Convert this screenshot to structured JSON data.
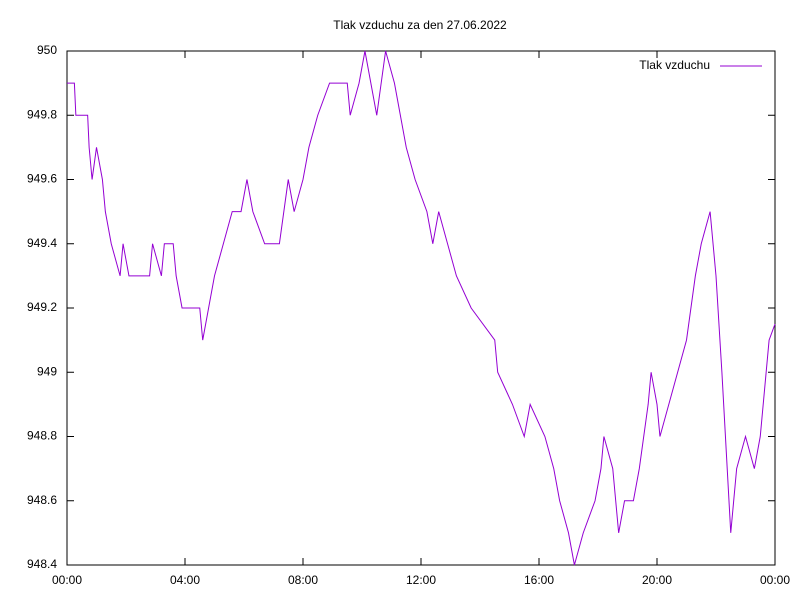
{
  "chart_data": {
    "type": "line",
    "title": "Tlak vzduchu za den 27.06.2022",
    "x": [
      0,
      0.25,
      0.3,
      0.7,
      0.75,
      0.85,
      1.0,
      1.2,
      1.3,
      1.5,
      1.8,
      1.9,
      2.1,
      2.3,
      2.8,
      2.9,
      3.2,
      3.3,
      3.6,
      3.7,
      3.9,
      4.5,
      4.6,
      4.8,
      5.0,
      5.3,
      5.6,
      5.9,
      6.1,
      6.3,
      6.7,
      7.2,
      7.5,
      7.7,
      8.0,
      8.2,
      8.5,
      8.9,
      9.5,
      9.6,
      9.9,
      10.1,
      10.3,
      10.5,
      10.8,
      11.1,
      11.3,
      11.5,
      11.8,
      12.2,
      12.4,
      12.6,
      12.9,
      13.2,
      13.7,
      14.5,
      14.6,
      15.1,
      15.5,
      15.7,
      16.2,
      16.5,
      16.7,
      17.0,
      17.2,
      17.5,
      17.9,
      18.1,
      18.2,
      18.5,
      18.6,
      18.7,
      18.9,
      19.2,
      19.4,
      19.7,
      19.8,
      20.0,
      20.1,
      20.4,
      20.7,
      21.0,
      21.3,
      21.5,
      21.8,
      22.0,
      22.2,
      22.5,
      22.7,
      23.0,
      23.3,
      23.5,
      23.8,
      24.0
    ],
    "series": [
      {
        "name": "Tlak vzduchu",
        "color": "#9400d3",
        "values": [
          949.9,
          949.9,
          949.8,
          949.8,
          949.7,
          949.6,
          949.7,
          949.6,
          949.5,
          949.4,
          949.3,
          949.4,
          949.3,
          949.3,
          949.3,
          949.4,
          949.3,
          949.4,
          949.4,
          949.3,
          949.2,
          949.2,
          949.1,
          949.2,
          949.3,
          949.4,
          949.5,
          949.5,
          949.6,
          949.5,
          949.4,
          949.4,
          949.6,
          949.5,
          949.6,
          949.7,
          949.8,
          949.9,
          949.9,
          949.8,
          949.9,
          950,
          949.9,
          949.8,
          950,
          949.9,
          949.8,
          949.7,
          949.6,
          949.5,
          949.4,
          949.5,
          949.4,
          949.3,
          949.2,
          949.1,
          949.0,
          948.9,
          948.8,
          948.9,
          948.8,
          948.7,
          948.6,
          948.5,
          948.4,
          948.5,
          948.6,
          948.7,
          948.8,
          948.7,
          948.6,
          948.5,
          948.6,
          948.6,
          948.7,
          948.9,
          949.0,
          948.9,
          948.8,
          948.9,
          949.0,
          949.1,
          949.3,
          949.4,
          949.5,
          949.3,
          949.0,
          948.5,
          948.7,
          948.8,
          948.7,
          948.8,
          949.1,
          949.15
        ]
      }
    ],
    "xlim": [
      0,
      24
    ],
    "xticks": [
      {
        "value": 0,
        "label": "00:00"
      },
      {
        "value": 4,
        "label": "04:00"
      },
      {
        "value": 8,
        "label": "08:00"
      },
      {
        "value": 12,
        "label": "12:00"
      },
      {
        "value": 16,
        "label": "16:00"
      },
      {
        "value": 20,
        "label": "20:00"
      },
      {
        "value": 24,
        "label": "00:00"
      }
    ],
    "ylim": [
      948.4,
      950
    ],
    "yticks": [
      948.4,
      948.6,
      948.8,
      949,
      949.2,
      949.4,
      949.6,
      949.8,
      950
    ],
    "grid": false,
    "legend": "top-right"
  }
}
